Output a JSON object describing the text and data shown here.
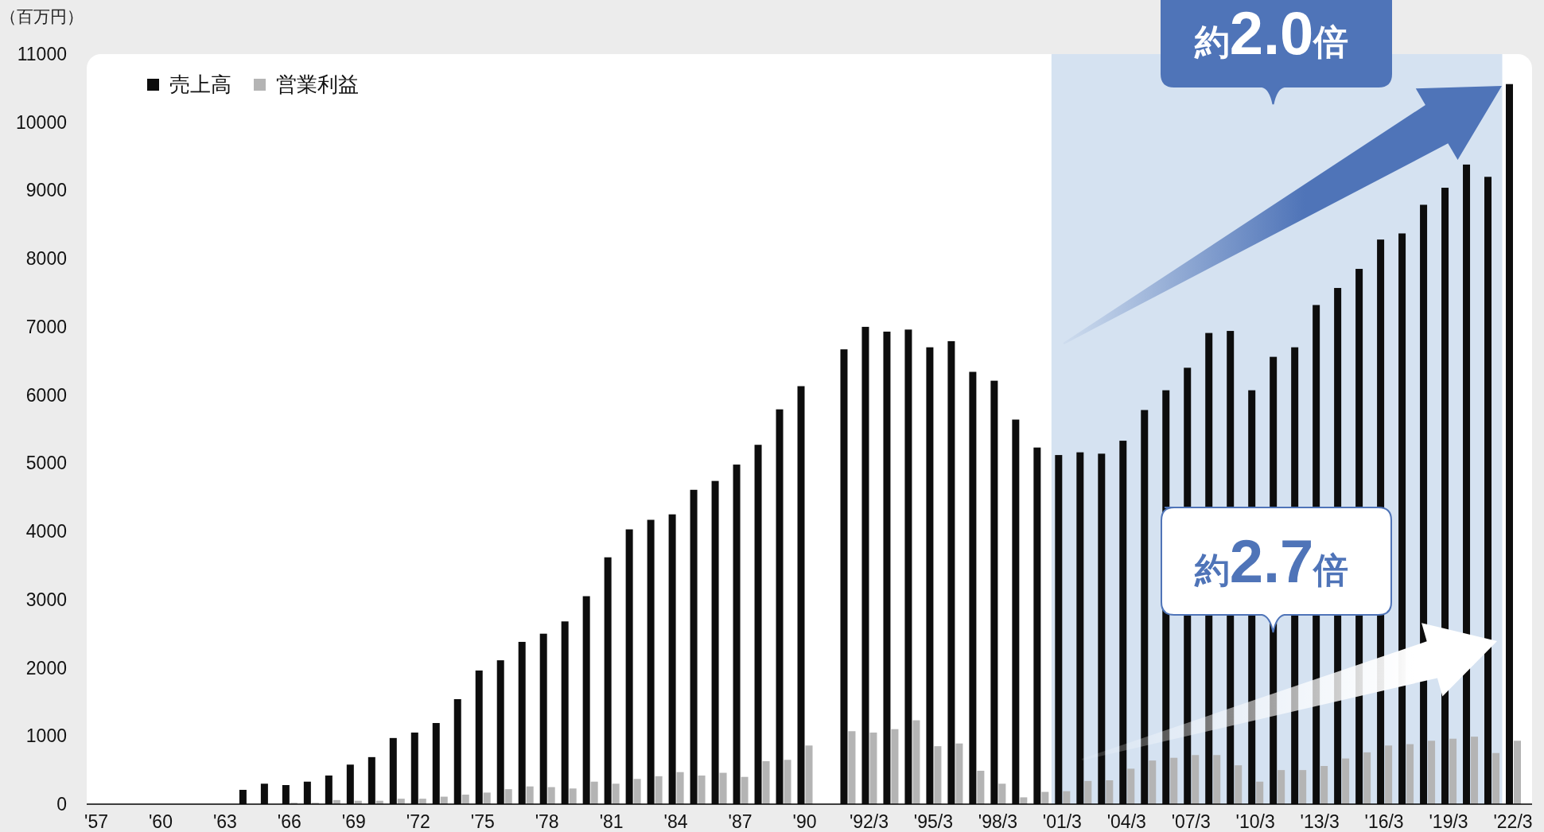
{
  "chart_data": {
    "type": "bar",
    "ylabel": "（百万円）",
    "categories": [
      "'57",
      null,
      null,
      "'60",
      null,
      null,
      "'63",
      null,
      null,
      "'66",
      null,
      null,
      "'69",
      null,
      null,
      "'72",
      null,
      null,
      "'75",
      null,
      null,
      "'78",
      null,
      null,
      "'81",
      null,
      null,
      "'84",
      null,
      null,
      "'87",
      null,
      null,
      "'90",
      null,
      null,
      "'92/3",
      null,
      null,
      "'95/3",
      null,
      null,
      "'98/3",
      null,
      null,
      "'01/3",
      null,
      null,
      "'04/3",
      null,
      null,
      "'07/3",
      null,
      null,
      "'10/3",
      null,
      null,
      "'13/3",
      null,
      null,
      "'16/3",
      null,
      null,
      "'19/3",
      null,
      null,
      "'22/3"
    ],
    "series": [
      {
        "name": "売上高",
        "color": "#0d0d0d",
        "values": [
          null,
          null,
          null,
          null,
          null,
          null,
          null,
          210,
          300,
          280,
          330,
          420,
          580,
          690,
          970,
          1050,
          1190,
          1540,
          1960,
          2110,
          2380,
          2500,
          2680,
          3050,
          3620,
          4030,
          4170,
          4250,
          4610,
          4740,
          4980,
          5270,
          5790,
          6130,
          null,
          6670,
          7000,
          6930,
          6960,
          6700,
          6790,
          6340,
          6210,
          5640,
          5230,
          5120,
          5160,
          5140,
          5330,
          5780,
          6070,
          6400,
          6910,
          6940,
          6070,
          6560,
          6700,
          7320,
          7570,
          7850,
          8280,
          8370,
          8790,
          9040,
          9380,
          9200,
          10560
        ]
      },
      {
        "name": "営業利益",
        "color": "#b4b4b4",
        "values": [
          null,
          null,
          null,
          null,
          null,
          null,
          null,
          null,
          null,
          20,
          20,
          60,
          50,
          50,
          80,
          80,
          110,
          140,
          170,
          220,
          260,
          250,
          230,
          330,
          300,
          370,
          410,
          470,
          420,
          460,
          400,
          630,
          650,
          860,
          null,
          1070,
          1050,
          1100,
          1230,
          850,
          890,
          490,
          300,
          100,
          180,
          190,
          340,
          350,
          520,
          640,
          680,
          720,
          720,
          570,
          330,
          500,
          500,
          560,
          670,
          760,
          860,
          880,
          930,
          960,
          990,
          750,
          930
        ]
      }
    ],
    "ylim": [
      0,
      11000
    ],
    "yticks": [
      0,
      1000,
      2000,
      3000,
      4000,
      5000,
      6000,
      7000,
      8000,
      9000,
      10000,
      11000
    ],
    "legend": "top left",
    "bands": [
      {
        "axis": "x",
        "from": "'01/3",
        "to": "'22/3",
        "color": "#d5e2f1"
      }
    ],
    "annotations": [
      "約**2.0**倍",
      "約**2.7**倍"
    ]
  }
}
